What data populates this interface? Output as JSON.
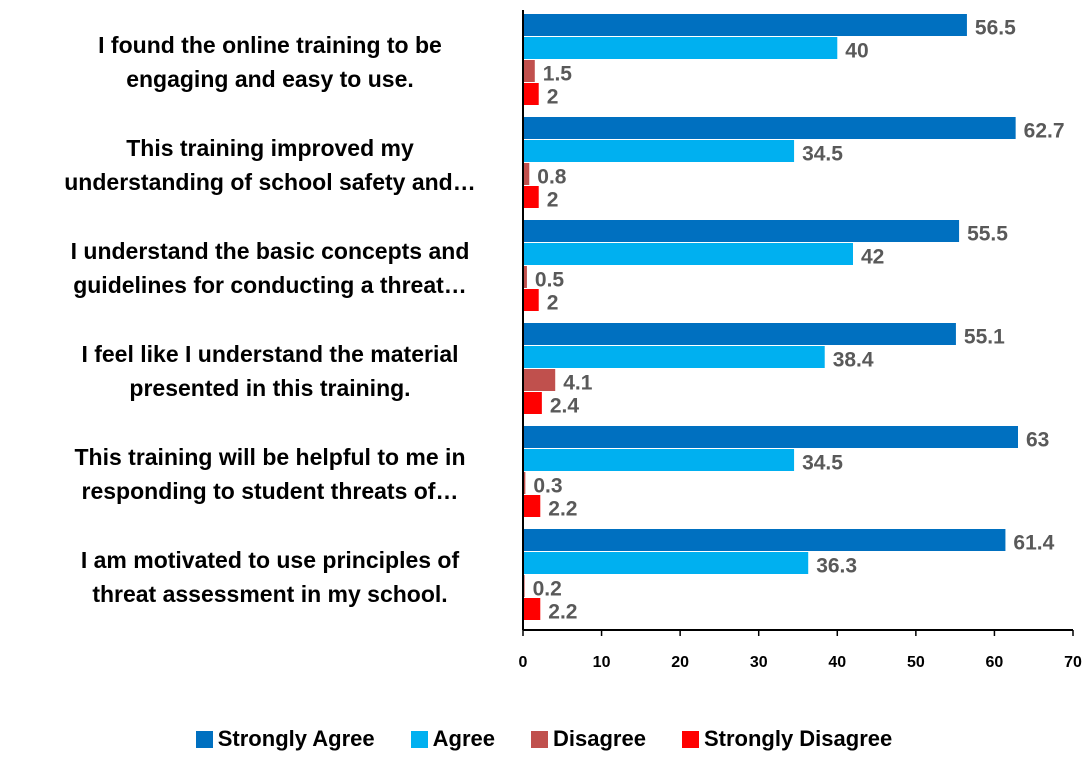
{
  "chart_data": {
    "type": "bar",
    "orientation": "horizontal",
    "categories": [
      "I found the online training to be\nengaging and easy to use.",
      "This training improved my\nunderstanding of school safety and…",
      "I understand the basic concepts and\nguidelines for conducting a threat…",
      "I feel like I understand the material\npresented in this training.",
      "This training will be helpful to me in\nresponding to student threats of…",
      "I am motivated to use principles of\nthreat assessment in my school."
    ],
    "series": [
      {
        "name": "Strongly Agree",
        "color": "#0070c0",
        "values": [
          56.5,
          62.7,
          55.5,
          55.1,
          63,
          61.4
        ]
      },
      {
        "name": "Agree",
        "color": "#00b0f0",
        "values": [
          40,
          34.5,
          42,
          38.4,
          34.5,
          36.3
        ]
      },
      {
        "name": "Disagree",
        "color": "#c0504d",
        "values": [
          1.5,
          0.8,
          0.5,
          4.1,
          0.3,
          0.2
        ]
      },
      {
        "name": "Strongly Disagree",
        "color": "#ff0000",
        "values": [
          2,
          2,
          2,
          2.4,
          2.2,
          2.2
        ]
      }
    ],
    "xlim": [
      0,
      70
    ],
    "xticks": [
      0,
      10,
      20,
      30,
      40,
      50,
      60,
      70
    ],
    "legend": "bottom"
  }
}
